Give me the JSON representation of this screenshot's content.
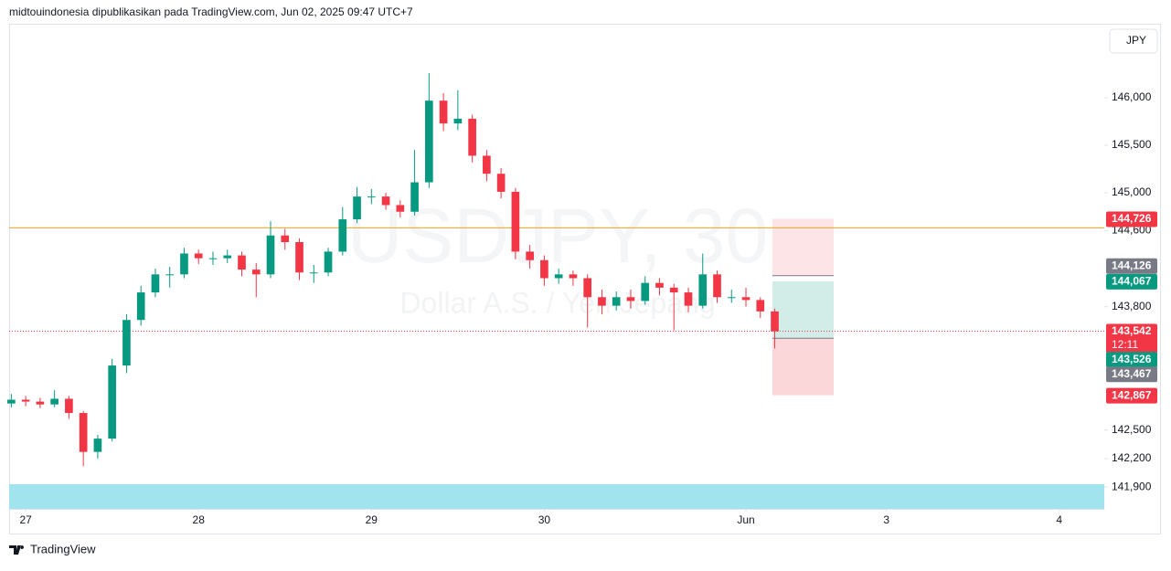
{
  "header": "midtouindonesia dipublikasikan pada TradingView.com, Jun 02, 2025 09:47 UTC+7",
  "currency_button": "JPY",
  "brand": "TradingView",
  "chart_data": {
    "type": "candlestick",
    "title": "USDJPY, 30",
    "subtitle": "Dollar A.S. / Yen Jepang",
    "up_color": "#089981",
    "down_color": "#f23645",
    "x": [
      -4,
      0,
      4,
      8,
      12,
      16,
      20,
      24,
      28,
      32,
      36,
      40,
      44,
      48,
      52,
      56,
      60,
      64,
      68,
      72,
      76,
      80,
      84,
      88,
      92,
      96,
      100,
      104,
      108,
      112,
      116,
      120,
      124,
      128,
      132,
      136,
      140,
      144,
      148,
      152,
      156,
      160,
      164,
      168,
      172,
      176,
      180,
      184,
      188,
      192,
      196,
      200,
      204,
      208
    ],
    "open": [
      142.78,
      142.82,
      142.8,
      142.77,
      142.83,
      142.68,
      142.27,
      142.41,
      143.18,
      143.66,
      143.95,
      144.14,
      144.14,
      144.36,
      144.31,
      144.31,
      144.34,
      144.19,
      144.14,
      144.55,
      144.48,
      144.16,
      144.16,
      144.38,
      144.72,
      144.96,
      144.96,
      144.87,
      144.8,
      145.11,
      145.97,
      145.73,
      145.78,
      145.39,
      145.2,
      145.01,
      144.38,
      144.29,
      144.1,
      144.14,
      144.1,
      143.9,
      143.81,
      143.9,
      143.86,
      144.05,
      144.0,
      143.95,
      143.81,
      144.14,
      143.9,
      143.9,
      143.87,
      143.75
    ],
    "high": [
      142.88,
      142.86,
      142.84,
      142.92,
      142.86,
      142.7,
      142.45,
      143.25,
      143.72,
      144.02,
      144.2,
      144.22,
      144.42,
      144.4,
      144.38,
      144.4,
      144.38,
      144.26,
      144.7,
      144.62,
      144.52,
      144.24,
      144.42,
      144.85,
      145.06,
      145.04,
      145.0,
      144.92,
      145.45,
      146.26,
      146.05,
      146.08,
      145.82,
      145.45,
      145.26,
      145.05,
      144.45,
      144.34,
      144.2,
      144.18,
      144.14,
      143.98,
      143.96,
      143.98,
      144.12,
      144.1,
      144.04,
      144.0,
      144.36,
      144.18,
      143.98,
      144.0,
      143.9,
      143.78
    ],
    "low": [
      142.74,
      142.75,
      142.73,
      142.74,
      142.62,
      142.12,
      142.2,
      142.38,
      143.1,
      143.6,
      143.9,
      144.0,
      144.1,
      144.25,
      144.24,
      144.26,
      144.12,
      143.9,
      144.1,
      144.4,
      144.08,
      144.05,
      144.12,
      144.34,
      144.68,
      144.88,
      144.82,
      144.74,
      144.76,
      145.05,
      145.65,
      145.66,
      145.32,
      145.12,
      144.94,
      144.3,
      144.2,
      144.02,
      144.04,
      144.02,
      143.58,
      143.72,
      143.76,
      143.78,
      143.82,
      143.92,
      143.55,
      143.74,
      143.78,
      143.84,
      143.84,
      143.8,
      143.68,
      143.36
    ],
    "close": [
      142.82,
      142.8,
      142.77,
      142.83,
      142.68,
      142.27,
      142.41,
      143.18,
      143.66,
      143.95,
      144.14,
      144.14,
      144.36,
      144.31,
      144.31,
      144.34,
      144.19,
      144.14,
      144.55,
      144.48,
      144.16,
      144.16,
      144.38,
      144.72,
      144.96,
      144.96,
      144.87,
      144.8,
      145.11,
      145.97,
      145.73,
      145.78,
      145.39,
      145.2,
      145.01,
      144.38,
      144.29,
      144.1,
      144.14,
      144.1,
      143.9,
      143.81,
      143.9,
      143.86,
      144.05,
      144.0,
      143.95,
      143.81,
      144.14,
      143.9,
      143.9,
      143.87,
      143.75,
      143.54
    ],
    "xlim": [
      -4.6,
      299.5
    ],
    "xticks": [
      {
        "value": 0,
        "label": "27"
      },
      {
        "value": 48,
        "label": "28"
      },
      {
        "value": 96,
        "label": "29"
      },
      {
        "value": 144,
        "label": "30"
      },
      {
        "value": 200,
        "label": "Jun"
      },
      {
        "value": 239,
        "label": "3"
      },
      {
        "value": 287,
        "label": "4"
      }
    ],
    "ylim": [
      141.67,
      146.78
    ],
    "yticks": [
      {
        "value": 146,
        "label": "146,000"
      },
      {
        "value": 145.5,
        "label": "145,500"
      },
      {
        "value": 145,
        "label": "145,000"
      },
      {
        "value": 144.6,
        "label": "144,600"
      },
      {
        "value": 143.8,
        "label": "143,800"
      },
      {
        "value": 142.5,
        "label": "142,500"
      },
      {
        "value": 142.2,
        "label": "142,200"
      },
      {
        "value": 141.9,
        "label": "141,900"
      }
    ],
    "horizontal_line": {
      "value": 144.63,
      "color": "#f7a21b"
    },
    "levels": [
      {
        "value": 144.726,
        "label": "144,726",
        "color": "#f23645"
      },
      {
        "value": 144.126,
        "label": "144,126",
        "color": "#787b86"
      },
      {
        "value": 144.067,
        "label": "144,067",
        "color": "#089981"
      },
      {
        "value": 143.542,
        "label": "143,542",
        "color": "#f23645"
      },
      {
        "value": 143.526,
        "label": "143,526",
        "color": "#089981"
      },
      {
        "value": 143.467,
        "label": "143,467",
        "color": "#787b86"
      },
      {
        "value": 142.867,
        "label": "142,867",
        "color": "#f23645"
      }
    ],
    "countdown": "12:11"
  }
}
